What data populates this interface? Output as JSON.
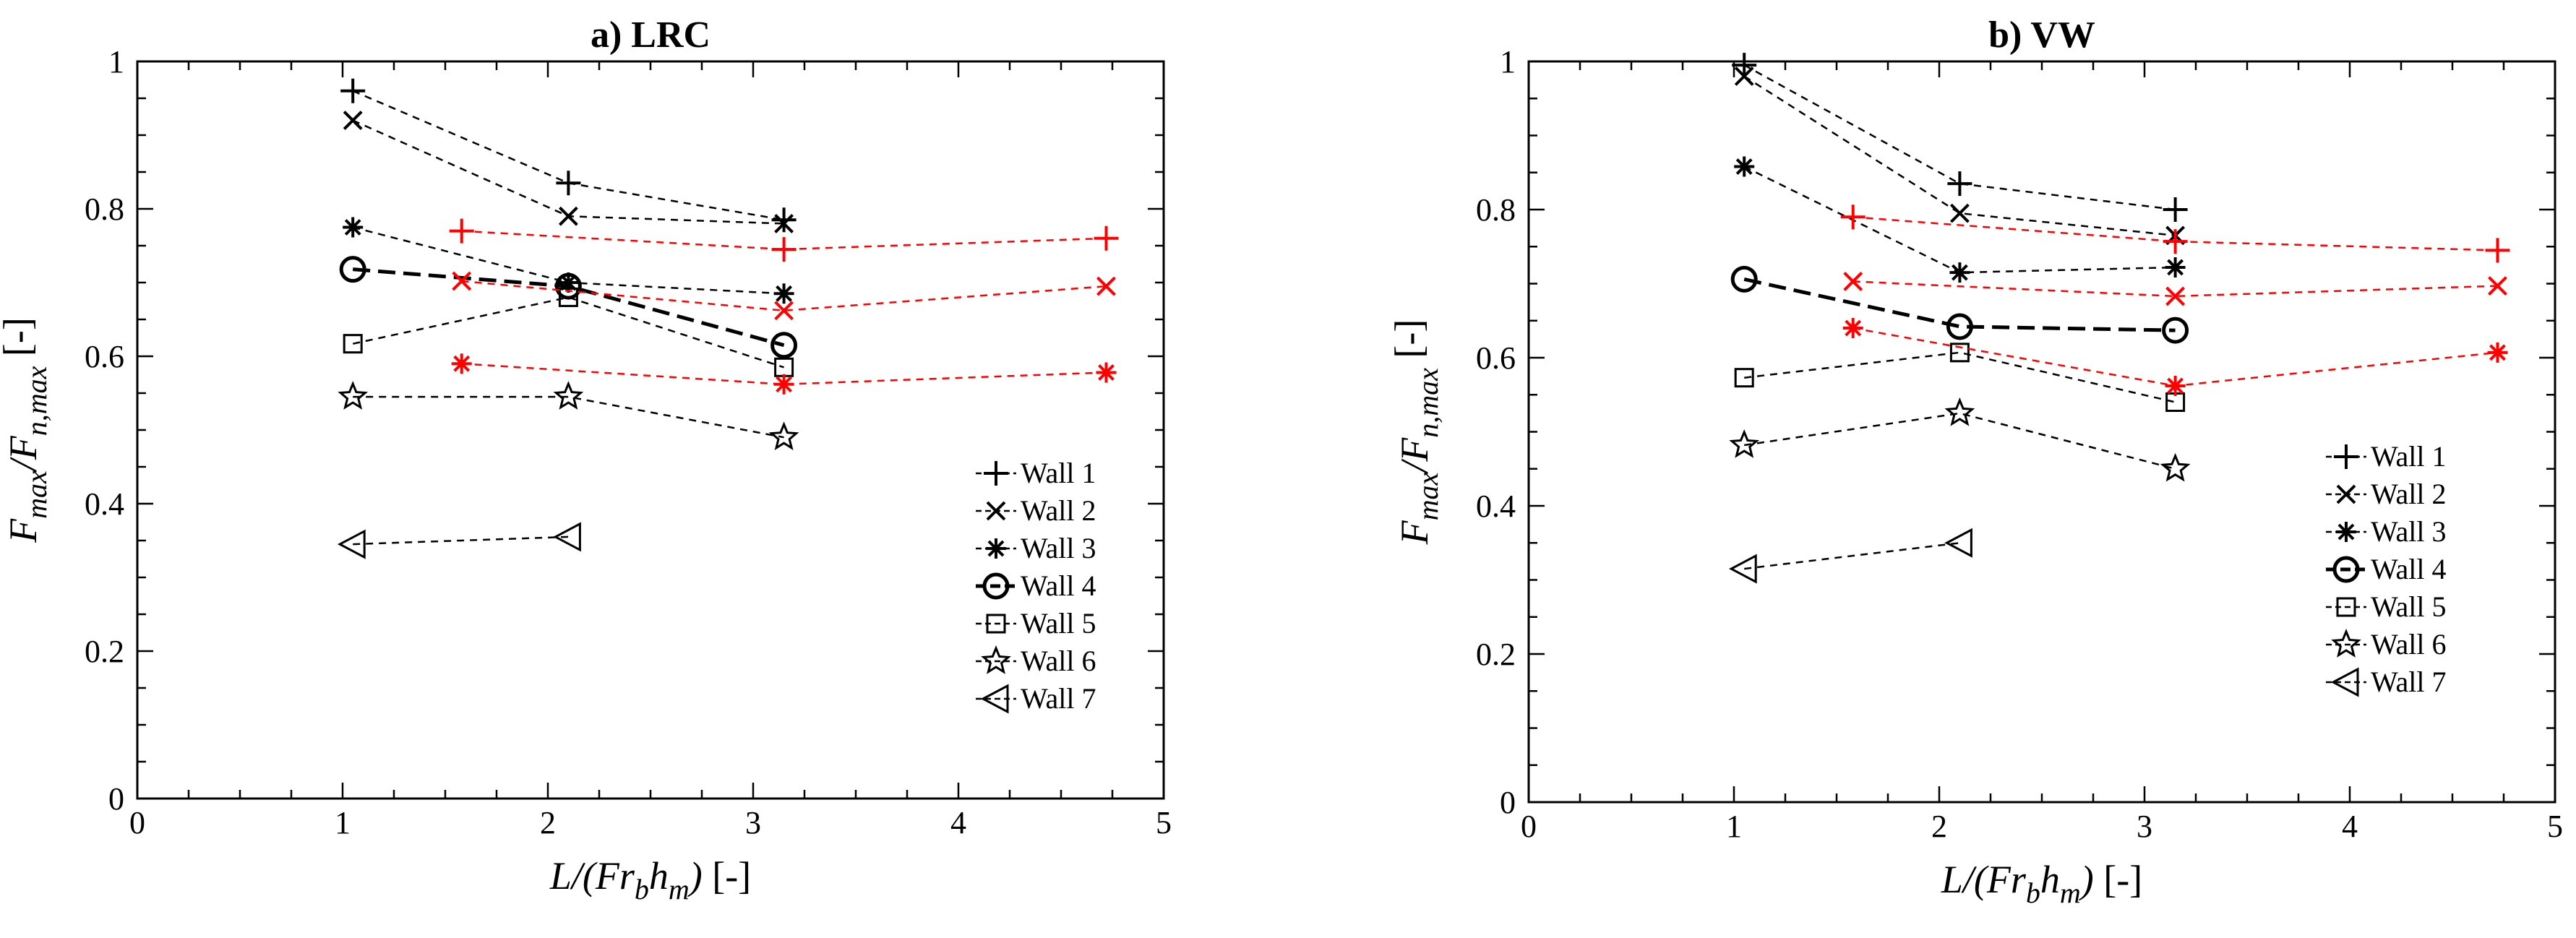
{
  "chart_data": [
    {
      "type": "line",
      "title": "a) LRC",
      "xlabel": "L/(Fr_b h_m) [-]",
      "ylabel": "F_max/F_n,max [-]",
      "xlim": [
        0,
        5
      ],
      "ylim": [
        0,
        1
      ],
      "xticks": [
        0,
        1,
        2,
        3,
        4,
        5
      ],
      "yticks": [
        0,
        0.2,
        0.4,
        0.6,
        0.8,
        1
      ],
      "xtick_labels": [
        "0",
        "1",
        "2",
        "3",
        "4",
        "5"
      ],
      "ytick_labels": [
        "0",
        "0.2",
        "0.4",
        "0.6",
        "0.8",
        "1"
      ],
      "grid": false,
      "legend_position": "bottom-right",
      "series": [
        {
          "name": "Wall 1",
          "marker": "plus",
          "color": "#000000",
          "x": [
            1.05,
            2.1,
            3.15
          ],
          "y": [
            0.96,
            0.835,
            0.785
          ]
        },
        {
          "name": "Wall 2",
          "marker": "x",
          "color": "#000000",
          "x": [
            1.05,
            2.1,
            3.15
          ],
          "y": [
            0.92,
            0.79,
            0.78
          ]
        },
        {
          "name": "Wall 3",
          "marker": "asterisk",
          "color": "#000000",
          "x": [
            1.05,
            2.1,
            3.15
          ],
          "y": [
            0.775,
            0.7,
            0.685
          ]
        },
        {
          "name": "Wall 4",
          "marker": "circle",
          "color": "#000000",
          "x": [
            1.05,
            2.1,
            3.15
          ],
          "y": [
            0.718,
            0.695,
            0.615
          ]
        },
        {
          "name": "Wall 5",
          "marker": "square",
          "color": "#000000",
          "x": [
            1.05,
            2.1,
            3.15
          ],
          "y": [
            0.617,
            0.68,
            0.585
          ]
        },
        {
          "name": "Wall 6",
          "marker": "star",
          "color": "#000000",
          "x": [
            1.05,
            2.1,
            3.15
          ],
          "y": [
            0.545,
            0.545,
            0.49
          ]
        },
        {
          "name": "Wall 7",
          "marker": "triangle-left",
          "color": "#000000",
          "x": [
            1.05,
            2.1
          ],
          "y": [
            0.345,
            0.355
          ]
        },
        {
          "marker": "plus",
          "color": "#ff0000",
          "x": [
            1.58,
            3.15,
            4.72
          ],
          "y": [
            0.77,
            0.745,
            0.76
          ]
        },
        {
          "marker": "x",
          "color": "#ff0000",
          "x": [
            1.58,
            3.15,
            4.72
          ],
          "y": [
            0.702,
            0.662,
            0.695
          ]
        },
        {
          "marker": "asterisk",
          "color": "#ff0000",
          "x": [
            1.58,
            3.15,
            4.72
          ],
          "y": [
            0.59,
            0.562,
            0.578
          ]
        }
      ]
    },
    {
      "type": "line",
      "title": "b) VW",
      "xlabel": "L/(Fr_b h_m) [-]",
      "ylabel": "F_max/F_n,max [-]",
      "xlim": [
        0,
        5
      ],
      "ylim": [
        0,
        1
      ],
      "xticks": [
        0,
        1,
        2,
        3,
        4,
        5
      ],
      "yticks": [
        0,
        0.2,
        0.4,
        0.6,
        0.8,
        1
      ],
      "xtick_labels": [
        "0",
        "1",
        "2",
        "3",
        "4",
        "5"
      ],
      "ytick_labels": [
        "0",
        "0.2",
        "0.4",
        "0.6",
        "0.8",
        "1"
      ],
      "grid": false,
      "legend_position": "right",
      "series": [
        {
          "name": "Wall 1",
          "marker": "plus",
          "color": "#000000",
          "x": [
            1.05,
            2.1,
            3.15
          ],
          "y": [
            0.995,
            0.835,
            0.8
          ]
        },
        {
          "name": "Wall 2",
          "marker": "x",
          "color": "#000000",
          "x": [
            1.05,
            2.1,
            3.15
          ],
          "y": [
            0.98,
            0.795,
            0.765
          ]
        },
        {
          "name": "Wall 3",
          "marker": "asterisk",
          "color": "#000000",
          "x": [
            1.05,
            2.1,
            3.15
          ],
          "y": [
            0.858,
            0.715,
            0.722
          ]
        },
        {
          "name": "Wall 4",
          "marker": "circle",
          "color": "#000000",
          "x": [
            1.05,
            2.1,
            3.15
          ],
          "y": [
            0.706,
            0.642,
            0.637
          ]
        },
        {
          "name": "Wall 5",
          "marker": "square",
          "color": "#000000",
          "x": [
            1.05,
            2.1,
            3.15
          ],
          "y": [
            0.573,
            0.607,
            0.54
          ]
        },
        {
          "name": "Wall 6",
          "marker": "star",
          "color": "#000000",
          "x": [
            1.05,
            2.1,
            3.15
          ],
          "y": [
            0.482,
            0.525,
            0.45
          ]
        },
        {
          "name": "Wall 7",
          "marker": "triangle-left",
          "color": "#000000",
          "x": [
            1.05,
            2.1
          ],
          "y": [
            0.315,
            0.35
          ]
        },
        {
          "marker": "plus",
          "color": "#ff0000",
          "x": [
            1.58,
            3.15,
            4.72
          ],
          "y": [
            0.79,
            0.757,
            0.745
          ]
        },
        {
          "marker": "x",
          "color": "#ff0000",
          "x": [
            1.58,
            3.15,
            4.72
          ],
          "y": [
            0.703,
            0.683,
            0.697
          ]
        },
        {
          "marker": "asterisk",
          "color": "#ff0000",
          "x": [
            1.58,
            3.15,
            4.72
          ],
          "y": [
            0.64,
            0.562,
            0.607
          ]
        }
      ]
    }
  ]
}
